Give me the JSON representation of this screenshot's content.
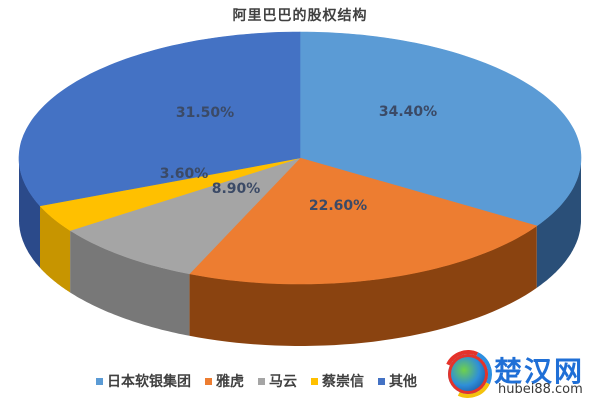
{
  "title": "阿里巴巴的股权结构",
  "chart_data": {
    "type": "pie",
    "style": "3d",
    "title": "阿里巴巴的股权结构",
    "categories": [
      "日本软银集团",
      "雅虎",
      "马云",
      "蔡崇信",
      "其他"
    ],
    "values": [
      34.4,
      22.6,
      8.9,
      3.6,
      31.5
    ],
    "labels": [
      "34.40%",
      "22.60%",
      "8.90%",
      "3.60%",
      "31.50%"
    ],
    "colors": [
      "#5b9bd5",
      "#ed7d31",
      "#a5a5a5",
      "#ffc000",
      "#4472c4"
    ],
    "side_colors": [
      "#2a4f78",
      "#8a4310",
      "#787878",
      "#c79500",
      "#2b4a8a"
    ],
    "start_angle_deg": 0,
    "direction": "clockwise",
    "legend_position": "bottom"
  },
  "legend": [
    {
      "label": "日本软银集团",
      "color": "#5b9bd5"
    },
    {
      "label": "雅虎",
      "color": "#ed7d31"
    },
    {
      "label": "马云",
      "color": "#a5a5a5"
    },
    {
      "label": "蔡崇信",
      "color": "#ffc000"
    },
    {
      "label": "其他",
      "color": "#4472c4"
    }
  ],
  "watermark": {
    "title": "楚汉网",
    "url": "hubei88.com"
  }
}
